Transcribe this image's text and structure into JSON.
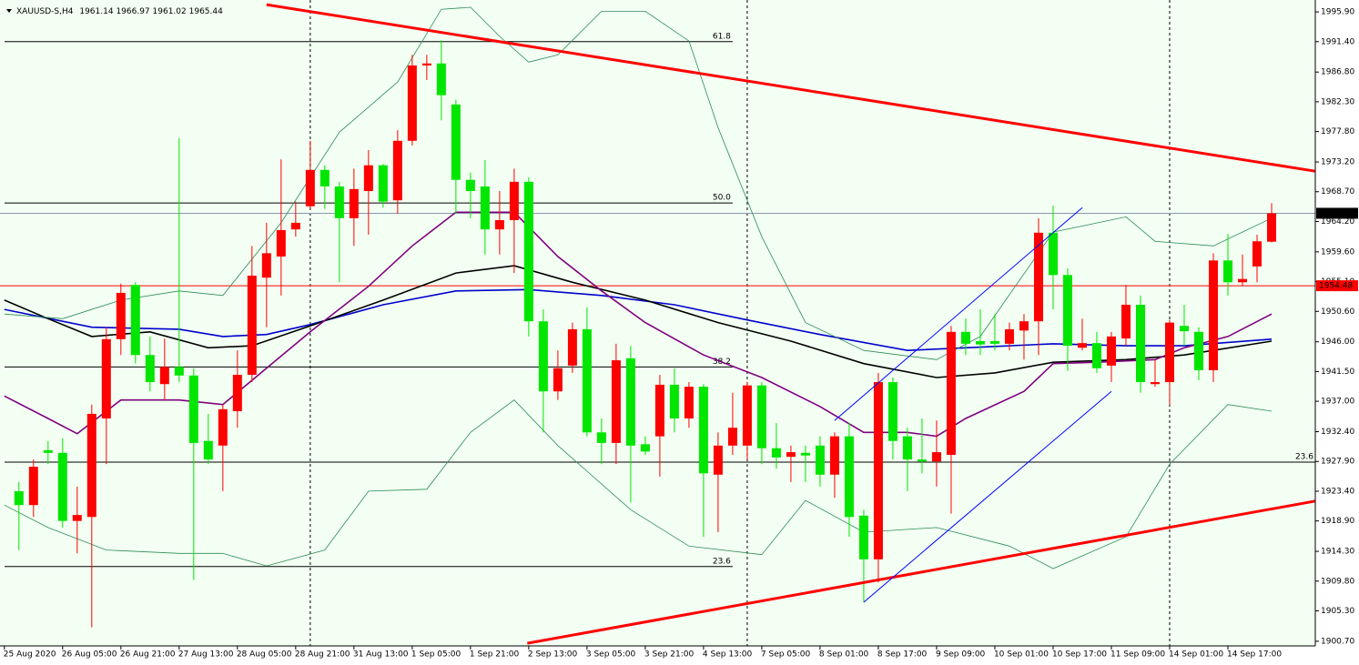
{
  "chart_data": {
    "type": "candlestick",
    "symbol": "XAUUSD-S,H4",
    "up_color": "#ff0000",
    "down_color": "#00e600",
    "x": [
      0,
      1,
      2,
      3,
      4,
      5,
      6,
      7,
      8,
      9,
      10,
      11,
      12,
      13,
      14,
      15,
      16,
      17,
      18,
      19,
      20,
      21,
      22,
      23,
      24,
      25,
      26,
      27,
      28,
      29,
      30,
      31,
      32,
      33,
      34,
      35,
      36,
      37,
      38,
      39,
      40,
      41,
      42,
      43,
      44,
      45,
      46,
      47,
      48,
      49,
      50,
      51,
      52,
      53,
      54,
      55,
      56,
      57,
      58,
      59,
      60,
      61,
      62,
      63,
      64,
      65,
      66,
      67,
      68,
      69,
      70,
      71,
      72,
      73,
      74,
      75,
      76,
      77,
      78,
      79,
      80,
      81,
      82,
      83,
      84,
      85,
      86
    ],
    "open": [
      1923.4,
      1921.3,
      1929.6,
      1929.2,
      1918.9,
      1919.5,
      1934.4,
      1946.4,
      1954.6,
      1944.0,
      1939.6,
      1942.2,
      1940.9,
      1931.0,
      1930.3,
      1935.5,
      1941.0,
      1955.7,
      1958.9,
      1963.0,
      1966.5,
      1972.0,
      1969.5,
      1964.7,
      1968.8,
      1972.7,
      1967.4,
      1976.4,
      1987.8,
      1988.1,
      1981.9,
      1970.5,
      1969.5,
      1963.0,
      1964.4,
      1970.2,
      1949.1,
      1938.5,
      1942.4,
      1947.9,
      1932.3,
      1930.7,
      1943.5,
      1930.5,
      1931.7,
      1939.5,
      1934.4,
      1939.2,
      1925.9,
      1930.3,
      1930.3,
      1939.4,
      1929.9,
      1928.6,
      1929.2,
      1930.3,
      1925.9,
      1931.7,
      1919.7,
      1913.1,
      1939.9,
      1931.7,
      1928.2,
      1927.9,
      1928.9,
      1947.5,
      1946.1,
      1946.1,
      1945.7,
      1947.7,
      1949.1,
      1962.5,
      1956.1,
      1945.1,
      1945.8,
      1942.4,
      1946.5,
      1951.6,
      1939.6,
      1939.9,
      1948.4,
      1947.5,
      1941.7,
      1958.3,
      1955.0,
      1957.4,
      1961.14
    ],
    "high": [
      1924.8,
      1928.2,
      1931.0,
      1931.4,
      1924.1,
      1936.5,
      1948.2,
      1954.8,
      1955.0,
      1946.8,
      1946.5,
      1976.8,
      1942.0,
      1935.1,
      1936.5,
      1944.7,
      1960.5,
      1964.0,
      1973.6,
      1967.2,
      1976.4,
      1972.7,
      1970.2,
      1972.2,
      1975.0,
      1972.9,
      1978.0,
      1989.4,
      1989.4,
      1991.6,
      1982.6,
      1971.6,
      1973.5,
      1968.8,
      1972.2,
      1970.9,
      1950.9,
      1944.7,
      1948.9,
      1951.2,
      1934.4,
      1945.7,
      1945.4,
      1931.7,
      1941.0,
      1942.0,
      1939.9,
      1939.6,
      1932.3,
      1938.3,
      1939.9,
      1939.9,
      1933.7,
      1930.3,
      1930.3,
      1931.7,
      1932.3,
      1933.7,
      1920.6,
      1941.3,
      1940.6,
      1933.0,
      1934.4,
      1934.1,
      1948.4,
      1949.5,
      1950.9,
      1950.2,
      1948.9,
      1950.2,
      1964.7,
      1966.6,
      1957.1,
      1949.5,
      1947.5,
      1947.5,
      1954.6,
      1953.0,
      1943.3,
      1949.3,
      1951.6,
      1948.2,
      1959.4,
      1962.3,
      1959.2,
      1962.2,
      1966.97
    ],
    "low": [
      1914.5,
      1919.5,
      1927.5,
      1917.9,
      1914.0,
      1902.8,
      1927.5,
      1944.0,
      1942.7,
      1938.5,
      1937.2,
      1939.9,
      1910.0,
      1927.5,
      1923.4,
      1933.0,
      1939.9,
      1948.2,
      1953.0,
      1961.9,
      1966.1,
      1966.1,
      1955.0,
      1960.5,
      1962.2,
      1966.3,
      1965.4,
      1975.7,
      1985.6,
      1979.5,
      1965.4,
      1964.7,
      1959.2,
      1959.2,
      1956.4,
      1946.8,
      1932.3,
      1937.2,
      1941.3,
      1931.7,
      1927.5,
      1927.5,
      1921.7,
      1928.9,
      1925.6,
      1932.3,
      1933.0,
      1916.5,
      1917.2,
      1928.9,
      1928.2,
      1927.5,
      1926.8,
      1924.8,
      1924.8,
      1924.1,
      1922.4,
      1916.5,
      1906.6,
      1909.6,
      1928.2,
      1923.4,
      1926.1,
      1924.1,
      1920.0,
      1944.0,
      1944.0,
      1944.7,
      1944.7,
      1943.3,
      1944.0,
      1950.9,
      1941.6,
      1944.7,
      1941.3,
      1939.9,
      1945.4,
      1938.3,
      1939.2,
      1936.5,
      1945.4,
      1940.2,
      1939.9,
      1953.0,
      1954.4,
      1955.0,
      1961.02
    ],
    "close": [
      1921.3,
      1927.1,
      1929.2,
      1918.9,
      1919.8,
      1935.1,
      1946.4,
      1953.4,
      1944.0,
      1939.9,
      1942.2,
      1940.9,
      1930.7,
      1928.2,
      1935.8,
      1941.0,
      1956.0,
      1959.4,
      1962.9,
      1964.0,
      1972.0,
      1969.5,
      1964.7,
      1969.1,
      1972.7,
      1967.2,
      1976.4,
      1987.8,
      1988.1,
      1983.3,
      1970.5,
      1968.8,
      1963.0,
      1964.4,
      1970.2,
      1949.1,
      1938.5,
      1942.0,
      1947.9,
      1932.3,
      1930.7,
      1943.2,
      1930.3,
      1929.4,
      1939.5,
      1934.4,
      1939.2,
      1926.1,
      1930.3,
      1933.0,
      1939.4,
      1929.9,
      1928.5,
      1929.3,
      1928.8,
      1925.9,
      1931.7,
      1919.5,
      1913.1,
      1939.9,
      1931.0,
      1928.2,
      1927.9,
      1929.3,
      1947.5,
      1945.7,
      1945.6,
      1945.7,
      1947.9,
      1949.1,
      1962.5,
      1956.1,
      1945.4,
      1945.8,
      1942.0,
      1946.8,
      1951.6,
      1939.9,
      1939.9,
      1948.9,
      1947.6,
      1941.7,
      1958.3,
      1955.0,
      1955.5,
      1961.2,
      1965.44
    ],
    "xlim": [
      -1.3,
      89
    ],
    "ylim": [
      1900.0,
      1997.7
    ],
    "yticks": [
      {
        "value": 1995.9,
        "label": "1995.90"
      },
      {
        "value": 1991.4,
        "label": "1991.40"
      },
      {
        "value": 1986.8,
        "label": "1986.80"
      },
      {
        "value": 1982.3,
        "label": "1982.30"
      },
      {
        "value": 1977.8,
        "label": "1977.80"
      },
      {
        "value": 1973.2,
        "label": "1973.20"
      },
      {
        "value": 1968.7,
        "label": "1968.70"
      },
      {
        "value": 1964.2,
        "label": "1964.20"
      },
      {
        "value": 1959.6,
        "label": "1959.60"
      },
      {
        "value": 1955.1,
        "label": "1955.10"
      },
      {
        "value": 1950.6,
        "label": "1950.60"
      },
      {
        "value": 1946.0,
        "label": "1946.00"
      },
      {
        "value": 1941.5,
        "label": "1941.50"
      },
      {
        "value": 1937.0,
        "label": "1937.00"
      },
      {
        "value": 1932.4,
        "label": "1932.40"
      },
      {
        "value": 1927.9,
        "label": "1927.90"
      },
      {
        "value": 1923.4,
        "label": "1923.40"
      },
      {
        "value": 1918.9,
        "label": "1918.90"
      },
      {
        "value": 1914.3,
        "label": "1914.30"
      },
      {
        "value": 1909.8,
        "label": "1909.80"
      },
      {
        "value": 1905.3,
        "label": "1905.30"
      },
      {
        "value": 1900.7,
        "label": "1900.70"
      }
    ],
    "xticks": [
      {
        "value": -1,
        "label": "25 Aug 2020"
      },
      {
        "value": 3,
        "label": "26 Aug 05:00"
      },
      {
        "value": 7,
        "label": "26 Aug 21:00"
      },
      {
        "value": 11,
        "label": "27 Aug 13:00"
      },
      {
        "value": 15,
        "label": "28 Aug 05:00"
      },
      {
        "value": 19,
        "label": "28 Aug 21:00"
      },
      {
        "value": 23,
        "label": "31 Aug 13:00"
      },
      {
        "value": 27,
        "label": "1 Sep 05:00"
      },
      {
        "value": 31,
        "label": "1 Sep 21:00"
      },
      {
        "value": 35,
        "label": "2 Sep 13:00"
      },
      {
        "value": 39,
        "label": "3 Sep 05:00"
      },
      {
        "value": 43,
        "label": "3 Sep 21:00"
      },
      {
        "value": 47,
        "label": "4 Sep 13:00"
      },
      {
        "value": 51,
        "label": "7 Sep 05:00"
      },
      {
        "value": 55,
        "label": "8 Sep 01:00"
      },
      {
        "value": 59,
        "label": "8 Sep 17:00"
      },
      {
        "value": 63,
        "label": "9 Sep 09:00"
      },
      {
        "value": 67,
        "label": "10 Sep 01:00"
      },
      {
        "value": 71,
        "label": "10 Sep 17:00"
      },
      {
        "value": 75,
        "label": "11 Sep 09:00"
      },
      {
        "value": 79,
        "label": "14 Sep 01:00"
      },
      {
        "value": 83,
        "label": "14 Sep 17:00"
      }
    ],
    "separators": [
      20,
      50,
      79
    ],
    "levels": [
      {
        "label": "61.8",
        "value": 1991.4,
        "end": 49
      },
      {
        "label": "50.0",
        "value": 1967.0,
        "end": 49
      },
      {
        "label": "38.2",
        "value": 1942.2,
        "end": 49
      },
      {
        "label": "23.6",
        "value": 1927.8,
        "end": 89
      },
      {
        "label": "23.6",
        "value": 1912.0,
        "end": 49
      }
    ],
    "hlines": [
      {
        "value": 1954.48,
        "color": "#ff0000"
      }
    ],
    "price_line_color": "#8899aa",
    "indicators": [
      {
        "color": "#0000cd",
        "x": [
          -1,
          5,
          11,
          14,
          17,
          20,
          25,
          30,
          35,
          40,
          45,
          50,
          55,
          61,
          65,
          71,
          76,
          80,
          86
        ],
        "values": [
          1950.9,
          1948.2,
          1947.9,
          1946.8,
          1947.1,
          1948.6,
          1951.6,
          1953.7,
          1953.9,
          1953.0,
          1951.6,
          1949.3,
          1947.1,
          1944.7,
          1945.1,
          1945.7,
          1945.4,
          1945.4,
          1946.4
        ]
      },
      {
        "color": "#000000",
        "x": [
          -1,
          2,
          5,
          9,
          13,
          16,
          20,
          25,
          30,
          34,
          38,
          43,
          48,
          53,
          58,
          63,
          67,
          71,
          76,
          80,
          86
        ],
        "values": [
          1952.3,
          1949.5,
          1946.8,
          1947.5,
          1945.1,
          1945.4,
          1948.4,
          1952.3,
          1956.4,
          1957.5,
          1955.0,
          1952.3,
          1948.9,
          1946.1,
          1942.7,
          1940.6,
          1941.3,
          1942.9,
          1943.3,
          1944.0,
          1946.1
        ]
      },
      {
        "color": "#800080",
        "x": [
          -1,
          2,
          4,
          7,
          11,
          14,
          17,
          20,
          24,
          27,
          30,
          34,
          37,
          40,
          43,
          47,
          51,
          55,
          58,
          61,
          63,
          65,
          69,
          71,
          74,
          78,
          80,
          83,
          86
        ],
        "values": [
          1937.8,
          1934.4,
          1932.1,
          1937.2,
          1937.2,
          1936.5,
          1942.0,
          1947.5,
          1954.4,
          1960.5,
          1965.6,
          1965.6,
          1958.9,
          1953.7,
          1948.9,
          1944.0,
          1940.6,
          1936.2,
          1932.3,
          1932.3,
          1931.7,
          1934.4,
          1938.5,
          1942.7,
          1942.9,
          1943.3,
          1945.1,
          1946.8,
          1950.2
        ]
      },
      {
        "color": "#2e8b57",
        "x": [
          -1,
          3,
          7,
          11,
          14,
          18,
          22,
          26,
          29,
          31,
          33,
          35,
          37,
          40,
          43,
          46,
          48,
          51,
          54,
          58,
          63,
          66,
          71,
          76,
          78,
          82,
          86
        ],
        "values": [
          1950.2,
          1949.5,
          1952.3,
          1953.7,
          1953.0,
          1964.0,
          1977.7,
          1985.3,
          1996.3,
          1996.6,
          1992.2,
          1988.3,
          1989.4,
          1996.0,
          1996.0,
          1991.5,
          1978.4,
          1961.9,
          1948.9,
          1944.7,
          1943.3,
          1946.8,
          1962.6,
          1964.9,
          1961.2,
          1960.5,
          1964.7
        ]
      },
      {
        "color": "#2e8b57",
        "x": [
          -1,
          2,
          6,
          11,
          14,
          17,
          21,
          24,
          28,
          31,
          34,
          37,
          42,
          46,
          51,
          54,
          58,
          63,
          68,
          71,
          76,
          79,
          83,
          86
        ],
        "values": [
          1921.3,
          1917.9,
          1914.5,
          1914.0,
          1914.0,
          1912.1,
          1914.5,
          1923.4,
          1923.7,
          1932.3,
          1937.2,
          1930.3,
          1920.6,
          1915.1,
          1913.8,
          1922.0,
          1917.2,
          1917.9,
          1915.1,
          1911.7,
          1916.5,
          1927.5,
          1936.5,
          1935.5
        ]
      }
    ],
    "trendlines": [
      {
        "color": "#ff0000",
        "x": [
          17,
          89
        ],
        "values": [
          1997.0,
          1971.8
        ]
      },
      {
        "color": "#ff0000",
        "x": [
          34.9,
          89
        ],
        "values": [
          1900.4,
          1921.9
        ]
      },
      {
        "color": "#0000ff",
        "x": [
          56,
          73
        ],
        "values": [
          1934.1,
          1966.3
        ]
      },
      {
        "color": "#0000ff",
        "x": [
          58,
          75
        ],
        "values": [
          1906.6,
          1938.5
        ]
      }
    ]
  }
}
